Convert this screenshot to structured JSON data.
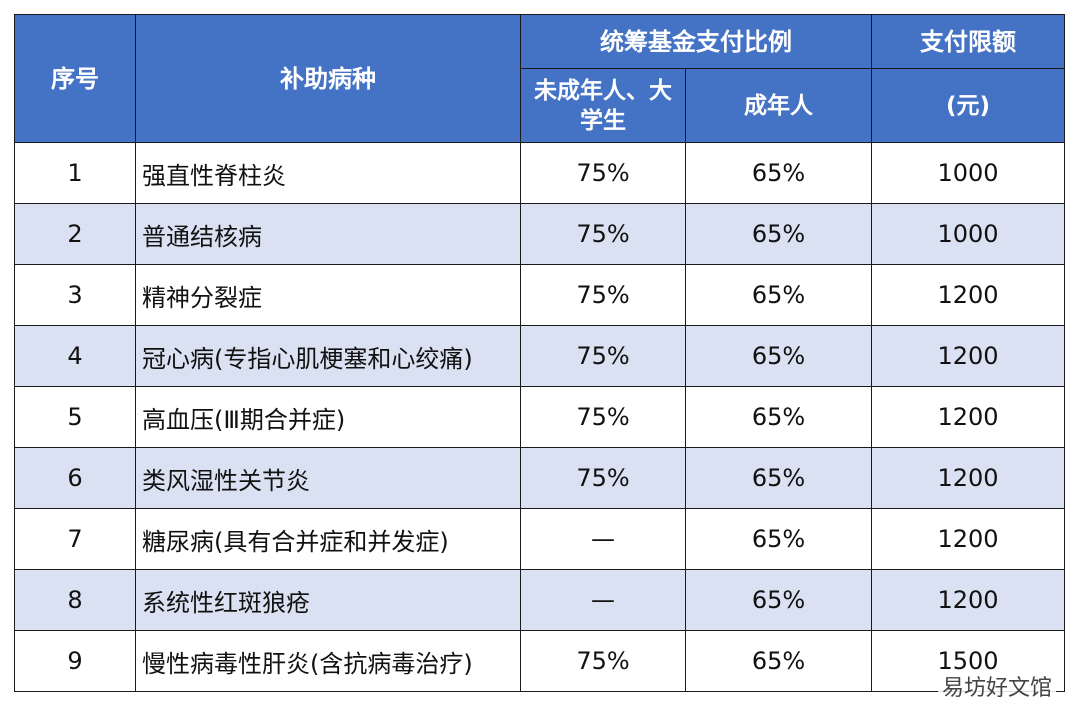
{
  "header": {
    "col_index": "序号",
    "col_disease": "补助病种",
    "col_ratio_group": "统筹基金支付比例",
    "col_ratio_minor": "未成年人、大学生",
    "col_ratio_adult": "成年人",
    "col_limit_group": "支付限额",
    "col_limit_unit": "(元)"
  },
  "rows": [
    {
      "index": "1",
      "disease": "强直性脊柱炎",
      "minor": "75%",
      "adult": "65%",
      "limit": "1000"
    },
    {
      "index": "2",
      "disease": "普通结核病",
      "minor": "75%",
      "adult": "65%",
      "limit": "1000"
    },
    {
      "index": "3",
      "disease": "精神分裂症",
      "minor": "75%",
      "adult": "65%",
      "limit": "1200"
    },
    {
      "index": "4",
      "disease": "冠心病(专指心肌梗塞和心绞痛)",
      "minor": "75%",
      "adult": "65%",
      "limit": "1200"
    },
    {
      "index": "5",
      "disease": "高血压(Ⅲ期合并症)",
      "minor": "75%",
      "adult": "65%",
      "limit": "1200"
    },
    {
      "index": "6",
      "disease": "类风湿性关节炎",
      "minor": "75%",
      "adult": "65%",
      "limit": "1200"
    },
    {
      "index": "7",
      "disease": "糖尿病(具有合并症和并发症)",
      "minor": "—",
      "adult": "65%",
      "limit": "1200"
    },
    {
      "index": "8",
      "disease": "系统性红斑狼疮",
      "minor": "—",
      "adult": "65%",
      "limit": "1200"
    },
    {
      "index": "9",
      "disease": "慢性病毒性肝炎(含抗病毒治疗)",
      "minor": "75%",
      "adult": "65%",
      "limit": "1500"
    }
  ],
  "watermark": "易坊好文馆",
  "colors": {
    "header_bg": "#4472c4",
    "header_text": "#ffffff",
    "row_alt_bg": "#d9e1f2",
    "border": "#1a1a1a"
  }
}
